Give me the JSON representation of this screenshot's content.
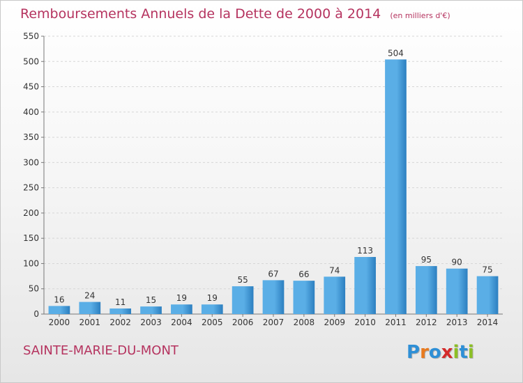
{
  "title": "Remboursements Annuels de la Dette de 2000 à 2014",
  "subtitle": "(en milliers d'€)",
  "town": "SAINTE-MARIE-DU-MONT",
  "brand": {
    "letters": [
      "P",
      "r",
      "o",
      "x",
      "i",
      "t",
      "i"
    ],
    "colors": [
      "#2e8fd6",
      "#e87a1f",
      "#2e8fd6",
      "#d42a2a",
      "#8cbf26",
      "#2e8fd6",
      "#8cbf26"
    ]
  },
  "colors": {
    "accent": "#b5335f",
    "bar_light": "#5aaee6",
    "bar_dark": "#2c7fc0"
  },
  "chart_data": {
    "type": "bar",
    "categories": [
      "2000",
      "2001",
      "2002",
      "2003",
      "2004",
      "2005",
      "2006",
      "2007",
      "2008",
      "2009",
      "2010",
      "2011",
      "2012",
      "2013",
      "2014"
    ],
    "values": [
      16,
      24,
      11,
      15,
      19,
      19,
      55,
      67,
      66,
      74,
      113,
      504,
      95,
      90,
      75
    ],
    "ylim": [
      0,
      550
    ],
    "yticks": [
      "0",
      "50",
      "100",
      "150",
      "200",
      "250",
      "300",
      "350",
      "400",
      "450",
      "500",
      "550"
    ],
    "grid": true,
    "legend": "none"
  }
}
